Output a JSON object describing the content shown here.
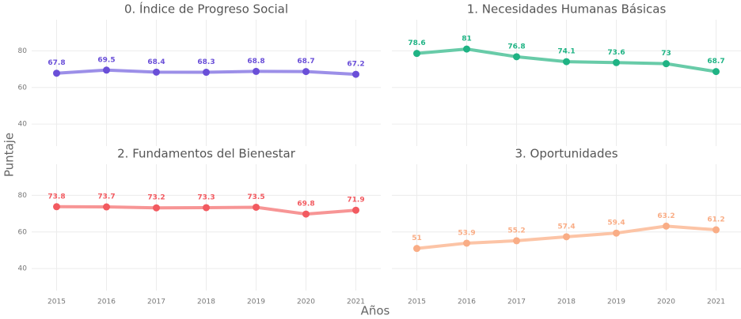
{
  "x_label": "Años",
  "y_label": "Puntaje",
  "categories": [
    "2015",
    "2016",
    "2017",
    "2018",
    "2019",
    "2020",
    "2021"
  ],
  "chart_data": [
    {
      "type": "line",
      "title": "0. Índice de Progreso Social",
      "color": "#6a4fd8",
      "line_color": "#9c8fe8",
      "values": [
        67.8,
        69.5,
        68.4,
        68.3,
        68.8,
        68.7,
        67.2
      ],
      "ylim": [
        28,
        97
      ],
      "yticks": [
        40,
        60,
        80
      ],
      "grid": true
    },
    {
      "type": "line",
      "title": "1. Necesidades Humanas Básicas",
      "color": "#1fb384",
      "line_color": "#68cba8",
      "values": [
        78.6,
        81,
        76.8,
        74.1,
        73.6,
        73,
        68.7
      ],
      "ylim": [
        28,
        97
      ],
      "yticks": [
        40,
        60,
        80
      ],
      "grid": true
    },
    {
      "type": "line",
      "title": "2. Fundamentos del Bienestar",
      "color": "#f25a60",
      "line_color": "#f79595",
      "values": [
        73.8,
        73.7,
        73.2,
        73.3,
        73.5,
        69.8,
        71.9
      ],
      "ylim": [
        28,
        97
      ],
      "yticks": [
        40,
        60,
        80
      ],
      "grid": true
    },
    {
      "type": "line",
      "title": "3. Oportunidades",
      "color": "#f9ad86",
      "line_color": "#fcc4a6",
      "values": [
        51,
        53.9,
        55.2,
        57.4,
        59.4,
        63.2,
        61.2
      ],
      "ylim": [
        28,
        97
      ],
      "yticks": [
        40,
        60,
        80
      ],
      "grid": true
    }
  ]
}
